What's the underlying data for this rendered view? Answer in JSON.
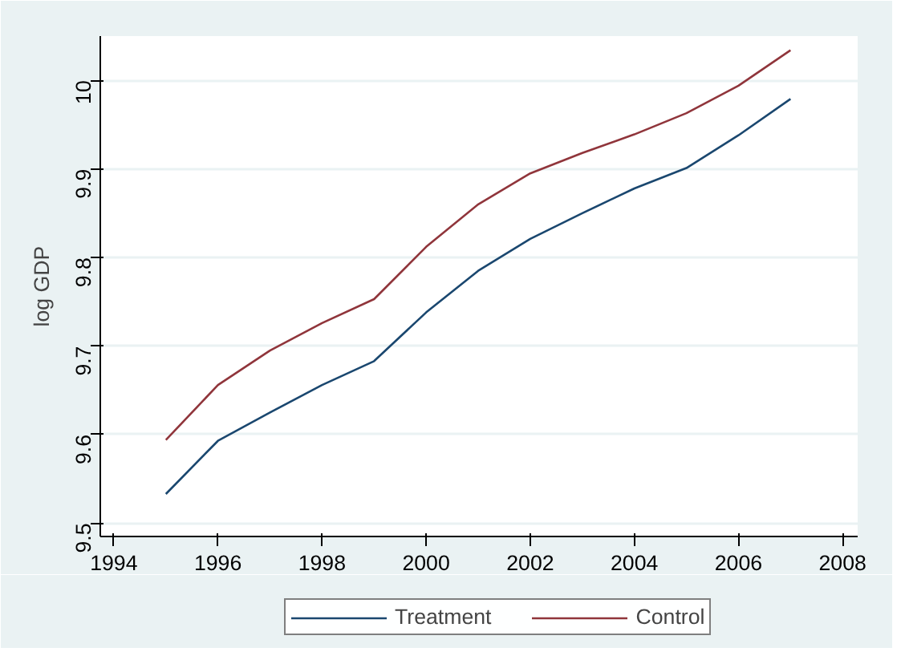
{
  "chart_data": {
    "type": "line",
    "ylabel": "log GDP",
    "x": [
      1995,
      1996,
      1997,
      1998,
      1999,
      2000,
      2001,
      2002,
      2003,
      2004,
      2005,
      2006,
      2007
    ],
    "series": [
      {
        "name": "Treatment",
        "color": "#1a476f",
        "values": [
          9.533,
          9.593,
          9.625,
          9.656,
          9.683,
          9.738,
          9.785,
          9.821,
          9.85,
          9.878,
          9.901,
          9.938,
          9.979
        ]
      },
      {
        "name": "Control",
        "color": "#90353b",
        "values": [
          9.594,
          9.656,
          9.695,
          9.726,
          9.753,
          9.812,
          9.86,
          9.895,
          9.918,
          9.939,
          9.963,
          9.994,
          10.034
        ]
      }
    ],
    "xlim": [
      1993.74,
      2008.29
    ],
    "ylim": [
      9.485,
      10.05
    ],
    "xticks": [
      1994,
      1996,
      1998,
      2000,
      2002,
      2004,
      2006,
      2008
    ],
    "yticks": [
      9.5,
      9.6,
      9.7,
      9.8,
      9.9,
      {
        "value": 10,
        "label": "10"
      }
    ],
    "grid": "y",
    "legend": "bottom",
    "marker": "none",
    "line_style": "solid"
  }
}
